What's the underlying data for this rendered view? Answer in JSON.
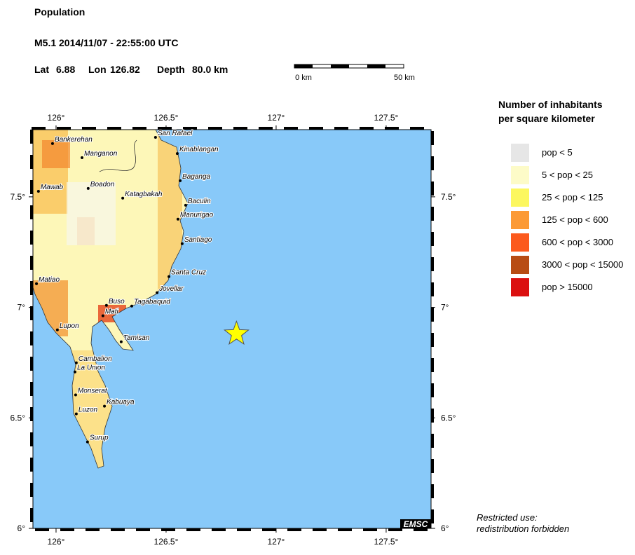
{
  "header": {
    "title": "Population",
    "event": "M5.1  2014/11/07 - 22:55:00 UTC",
    "lat_label": "Lat",
    "lat": 6.88,
    "lon_label": "Lon",
    "lon": 126.82,
    "depth_label": "Depth",
    "depth": "80.0 km"
  },
  "scale_bar": {
    "start_label": "0 km",
    "end_label": "50 km"
  },
  "map": {
    "lon_range": [
      125.895,
      127.704
    ],
    "lat_range": [
      6,
      7.804
    ],
    "lon_ticks": [
      {
        "value": 126,
        "label": "126°"
      },
      {
        "value": 126.5,
        "label": "126.5°"
      },
      {
        "value": 127,
        "label": "127°"
      },
      {
        "value": 127.5,
        "label": "127.5°"
      }
    ],
    "lat_ticks": [
      {
        "value": 7.5,
        "label": "7.5°"
      },
      {
        "value": 7,
        "label": "7°"
      },
      {
        "value": 6.5,
        "label": "6.5°"
      },
      {
        "value": 6,
        "label": "6°"
      }
    ],
    "sea_color": "#88c9f9",
    "towns": [
      {
        "name": "San Rafael",
        "lon": 126.452,
        "lat": 7.769
      },
      {
        "name": "Bankerehan",
        "lon": 125.984,
        "lat": 7.741
      },
      {
        "name": "Kinablangan",
        "lon": 126.551,
        "lat": 7.696
      },
      {
        "name": "Manganon",
        "lon": 126.118,
        "lat": 7.677
      },
      {
        "name": "Baganga",
        "lon": 126.564,
        "lat": 7.573
      },
      {
        "name": "Boadon",
        "lon": 126.146,
        "lat": 7.538
      },
      {
        "name": "Mawab",
        "lon": 125.92,
        "lat": 7.525
      },
      {
        "name": "Katagbakah",
        "lon": 126.303,
        "lat": 7.494
      },
      {
        "name": "Baculin",
        "lon": 126.589,
        "lat": 7.462
      },
      {
        "name": "Manurigao",
        "lon": 126.554,
        "lat": 7.399
      },
      {
        "name": "Santiago",
        "lon": 126.573,
        "lat": 7.288
      },
      {
        "name": "Santa Cruz",
        "lon": 126.513,
        "lat": 7.139
      },
      {
        "name": "Matiao",
        "lon": 125.911,
        "lat": 7.107
      },
      {
        "name": "Jovellar",
        "lon": 126.459,
        "lat": 7.066
      },
      {
        "name": "Buso",
        "lon": 126.229,
        "lat": 7.009
      },
      {
        "name": "Tagabaquid",
        "lon": 126.344,
        "lat": 7.006
      },
      {
        "name": "Mati",
        "lon": 126.213,
        "lat": 6.962
      },
      {
        "name": "Lupon",
        "lon": 126.006,
        "lat": 6.898
      },
      {
        "name": "Tamisan",
        "lon": 126.296,
        "lat": 6.844
      },
      {
        "name": "Cambalion",
        "lon": 126.092,
        "lat": 6.749
      },
      {
        "name": "La Union",
        "lon": 126.086,
        "lat": 6.708
      },
      {
        "name": "Monserat",
        "lon": 126.089,
        "lat": 6.604
      },
      {
        "name": "Kabuaya",
        "lon": 126.22,
        "lat": 6.553
      },
      {
        "name": "Luzon",
        "lon": 126.092,
        "lat": 6.518
      },
      {
        "name": "Surup",
        "lon": 126.143,
        "lat": 6.391
      }
    ],
    "badge": "EMSC"
  },
  "legend": {
    "title_lines": [
      "Number of inhabitants",
      "per square kilometer"
    ],
    "items": [
      {
        "label": "pop < 5",
        "color": "#e6e6e6"
      },
      {
        "label": "5 < pop < 25",
        "color": "#fdfbc8"
      },
      {
        "label": "25 < pop < 125",
        "color": "#fcf75e"
      },
      {
        "label": "125 < pop < 600",
        "color": "#fc9a35"
      },
      {
        "label": "600 < pop < 3000",
        "color": "#fc5a1d"
      },
      {
        "label": "3000 < pop < 15000",
        "color": "#b84c14"
      },
      {
        "label": "pop > 15000",
        "color": "#db1010"
      }
    ]
  },
  "note": {
    "lines": [
      "Restricted use:",
      "redistribution forbidden"
    ]
  }
}
